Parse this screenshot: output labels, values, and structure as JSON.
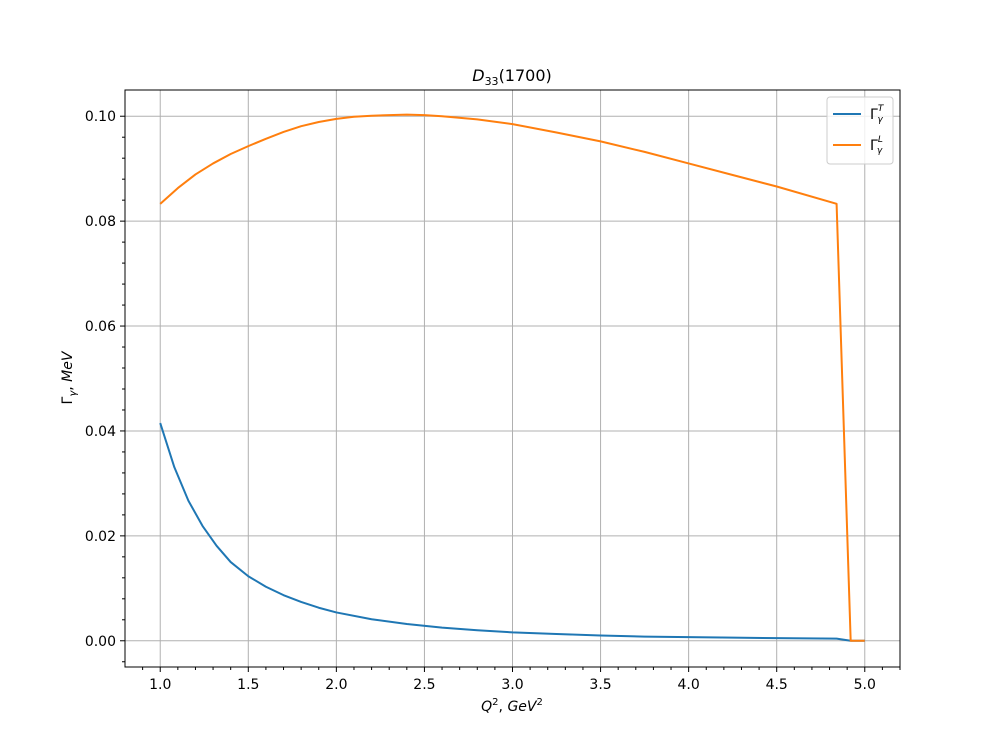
{
  "chart_data": {
    "type": "line",
    "title": "D33(1700)",
    "title_parts": {
      "base": "D",
      "sub": "33",
      "rest": "(1700)"
    },
    "xlabel": "Q², GeV²",
    "ylabel": "Γγ, MeV",
    "xlim": [
      0.8,
      5.2
    ],
    "ylim": [
      -0.005,
      0.105
    ],
    "xticks": [
      1.0,
      1.5,
      2.0,
      2.5,
      3.0,
      3.5,
      4.0,
      4.5,
      5.0
    ],
    "xtick_labels": [
      "1.0",
      "1.5",
      "2.0",
      "2.5",
      "3.0",
      "3.5",
      "4.0",
      "4.5",
      "5.0"
    ],
    "yticks": [
      0.0,
      0.02,
      0.04,
      0.06,
      0.08,
      0.1
    ],
    "ytick_labels": [
      "0.00",
      "0.02",
      "0.04",
      "0.06",
      "0.08",
      "0.10"
    ],
    "grid": true,
    "legend_position": "top-right",
    "series": [
      {
        "name": "Γγ^T",
        "label_parts": {
          "base": "Γ",
          "sub": "γ",
          "sup": "T"
        },
        "color": "#1f77b4",
        "x": [
          1.0,
          1.08,
          1.16,
          1.24,
          1.32,
          1.4,
          1.5,
          1.6,
          1.7,
          1.8,
          1.9,
          2.0,
          2.2,
          2.4,
          2.6,
          2.8,
          3.0,
          3.25,
          3.5,
          3.75,
          4.0,
          4.25,
          4.5,
          4.84,
          4.92,
          5.0
        ],
        "y": [
          0.0415,
          0.0331,
          0.0267,
          0.0219,
          0.0181,
          0.015,
          0.0123,
          0.0103,
          0.0087,
          0.0074,
          0.0063,
          0.0054,
          0.0041,
          0.0032,
          0.0025,
          0.002,
          0.0016,
          0.0013,
          0.001,
          0.0008,
          0.0007,
          0.0006,
          0.0005,
          0.0004,
          0.0,
          0.0
        ]
      },
      {
        "name": "Γγ^L",
        "label_parts": {
          "base": "Γ",
          "sub": "γ",
          "sup": "L"
        },
        "color": "#ff7f0e",
        "x": [
          1.0,
          1.1,
          1.2,
          1.3,
          1.4,
          1.5,
          1.6,
          1.7,
          1.8,
          1.9,
          2.0,
          2.1,
          2.2,
          2.3,
          2.4,
          2.5,
          2.6,
          2.8,
          3.0,
          3.25,
          3.5,
          3.75,
          4.0,
          4.25,
          4.5,
          4.84,
          4.92,
          5.0
        ],
        "y": [
          0.0833,
          0.0863,
          0.0889,
          0.091,
          0.0928,
          0.0943,
          0.0957,
          0.097,
          0.0981,
          0.0989,
          0.0995,
          0.0999,
          0.1001,
          0.1002,
          0.1003,
          0.1002,
          0.1,
          0.0994,
          0.0985,
          0.0969,
          0.0952,
          0.0932,
          0.091,
          0.0888,
          0.0866,
          0.0833,
          0.0,
          0.0
        ]
      }
    ]
  }
}
